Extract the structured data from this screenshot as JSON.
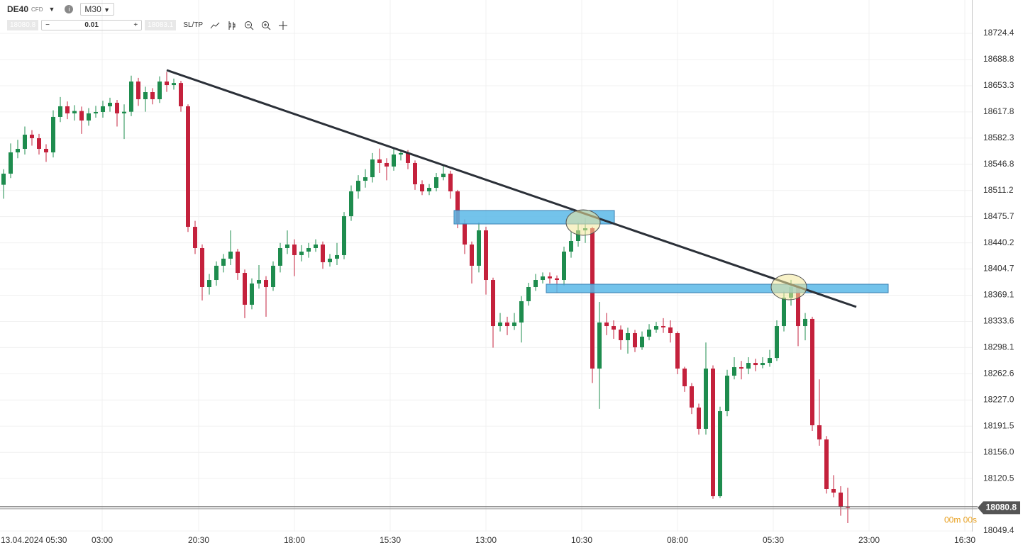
{
  "toolbar": {
    "symbol": "DE40",
    "kind": "CFD",
    "timeframe": "M30",
    "sell": "18080.8",
    "volume": "0.01",
    "buy": "18083.1",
    "sltp": "SL/TP"
  },
  "chart_data": {
    "type": "candlestick",
    "ylim": [
      18048.5,
      18769.6
    ],
    "xlim": [
      -0.5,
      136.5
    ],
    "yticks": [
      18724.4,
      18688.8,
      18653.3,
      18617.8,
      18582.3,
      18546.8,
      18511.2,
      18475.7,
      18440.2,
      18404.7,
      18369.1,
      18333.6,
      18298.1,
      18262.6,
      {
        "value": 18227,
        "label": "18227.0"
      },
      18191.5,
      {
        "value": 18156,
        "label": "18156.0"
      },
      18120.5,
      18049.4
    ],
    "xticks": [
      {
        "value": -0.5,
        "label": "13.04.2024 05:30"
      },
      {
        "value": 13.9,
        "label": "03:00"
      },
      {
        "value": 27.5,
        "label": "20:30"
      },
      {
        "value": 41,
        "label": "18:00"
      },
      {
        "value": 54.5,
        "label": "15:30"
      },
      {
        "value": 68,
        "label": "13:00"
      },
      {
        "value": 81.5,
        "label": "10:30"
      },
      {
        "value": 95,
        "label": "08:00"
      },
      {
        "value": 108.5,
        "label": "05:30"
      },
      {
        "value": 122,
        "label": "23:00"
      },
      {
        "value": 135.5,
        "label": "16:30"
      }
    ],
    "grid": true,
    "up_color": "#1e8c4e",
    "down_color": "#c4213c",
    "last_price": 18080.8,
    "countdown": "00m 00s",
    "candles": [
      [
        18519.0,
        18540.0,
        18500.0,
        18534.0
      ],
      [
        18534.0,
        18575.0,
        18528.0,
        18562.9
      ],
      [
        18562.9,
        18580.0,
        18555.0,
        18567.7
      ],
      [
        18567.7,
        18598.0,
        18560.0,
        18586.9
      ],
      [
        18586.9,
        18593.0,
        18572.0,
        18582.1
      ],
      [
        18582.1,
        18588.0,
        18560.0,
        18567.7
      ],
      [
        18567.7,
        18574.0,
        18550.0,
        18562.9
      ],
      [
        18562.9,
        18620.0,
        18556.0,
        18611.0
      ],
      [
        18611.0,
        18638.0,
        18604.0,
        18625.4
      ],
      [
        18625.4,
        18632.0,
        18608.0,
        18615.8
      ],
      [
        18615.8,
        18627.0,
        18606.0,
        18619.0
      ],
      [
        18619.0,
        18625.0,
        18588.0,
        18606.1
      ],
      [
        18606.1,
        18623.0,
        18599.0,
        18615.8
      ],
      [
        18615.8,
        18626.0,
        18610.0,
        18617.7
      ],
      [
        18617.7,
        18633.0,
        18610.0,
        18625.4
      ],
      [
        18625.4,
        18637.0,
        18618.0,
        18630.2
      ],
      [
        18630.2,
        18634.0,
        18598.0,
        18615.8
      ],
      [
        18615.8,
        18628.0,
        18581.0,
        18618.0
      ],
      [
        18618.0,
        18667.0,
        18612.0,
        18659.0
      ],
      [
        18659.0,
        18664.0,
        18626.0,
        18635.0
      ],
      [
        18635.0,
        18652.0,
        18618.0,
        18644.6
      ],
      [
        18644.6,
        18650.0,
        18628.0,
        18635.0
      ],
      [
        18635.0,
        18666.0,
        18630.0,
        18659.0
      ],
      [
        18659.0,
        18672.0,
        18645.0,
        18654.2
      ],
      [
        18654.2,
        18663.0,
        18648.0,
        18657.0
      ],
      [
        18657.0,
        18660.0,
        18618.0,
        18625.4
      ],
      [
        18625.4,
        18628.0,
        18455.0,
        18461.9
      ],
      [
        18461.9,
        18470.0,
        18425.0,
        18433.1
      ],
      [
        18433.1,
        18438.0,
        18362.0,
        18380.2
      ],
      [
        18380.2,
        18398.0,
        18370.0,
        18389.8
      ],
      [
        18389.8,
        18415.0,
        18382.0,
        18409.1
      ],
      [
        18409.1,
        18425.0,
        18400.0,
        18418.7
      ],
      [
        18418.7,
        18457.0,
        18410.0,
        18428.3
      ],
      [
        18428.3,
        18432.0,
        18390.0,
        18399.4
      ],
      [
        18399.4,
        18404.0,
        18338.0,
        18356.2
      ],
      [
        18356.2,
        18392.0,
        18350.0,
        18385.0
      ],
      [
        18385.0,
        18410.0,
        18378.0,
        18389.8
      ],
      [
        18389.8,
        18395.0,
        18340.0,
        18380.2
      ],
      [
        18380.2,
        18415.0,
        18375.0,
        18409.1
      ],
      [
        18409.1,
        18440.0,
        18400.0,
        18433.1
      ],
      [
        18433.1,
        18457.0,
        18425.0,
        18437.9
      ],
      [
        18437.9,
        18445.0,
        18395.0,
        18423.5
      ],
      [
        18423.5,
        18437.0,
        18415.0,
        18428.3
      ],
      [
        18428.3,
        18440.0,
        18420.0,
        18433.1
      ],
      [
        18433.1,
        18445.0,
        18428.0,
        18437.9
      ],
      [
        18437.9,
        18442.0,
        18405.0,
        18413.9
      ],
      [
        18413.9,
        18425.0,
        18408.0,
        18418.7
      ],
      [
        18418.7,
        18440.0,
        18410.0,
        18423.5
      ],
      [
        18423.5,
        18482.0,
        18418.0,
        18476.3
      ],
      [
        18476.3,
        18518.0,
        18470.0,
        18510.0
      ],
      [
        18510.0,
        18532.0,
        18500.0,
        18524.4
      ],
      [
        18524.4,
        18540.0,
        18515.0,
        18529.2
      ],
      [
        18529.2,
        18562.0,
        18522.0,
        18553.3
      ],
      [
        18553.3,
        18568.0,
        18535.0,
        18548.5
      ],
      [
        18548.5,
        18555.0,
        18525.0,
        18543.7
      ],
      [
        18543.7,
        18568.0,
        18538.0,
        18560.0
      ],
      [
        18560.0,
        18567.0,
        18552.0,
        18562.0
      ],
      [
        18562.0,
        18566.0,
        18540.0,
        18548.5
      ],
      [
        18548.5,
        18552.0,
        18512.0,
        18519.6
      ],
      [
        18519.6,
        18525.0,
        18505.0,
        18510.0
      ],
      [
        18510.0,
        18520.0,
        18505.0,
        18514.8
      ],
      [
        18514.8,
        18535.0,
        18510.0,
        18529.2
      ],
      [
        18529.2,
        18545.0,
        18525.0,
        18534.0
      ],
      [
        18534.0,
        18538.0,
        18500.0,
        18510.0
      ],
      [
        18510.0,
        18512.0,
        18460.0,
        18466.7
      ],
      [
        18466.7,
        18472.0,
        18425.0,
        18437.9
      ],
      [
        18437.9,
        18442.0,
        18385.0,
        18409.1
      ],
      [
        18409.1,
        18468.0,
        18400.0,
        18457.1
      ],
      [
        18457.1,
        18462.0,
        18370.0,
        18389.8
      ],
      [
        18389.8,
        18393.0,
        18298.0,
        18327.3
      ],
      [
        18327.3,
        18345.0,
        18320.0,
        18332.1
      ],
      [
        18332.1,
        18340.0,
        18315.0,
        18327.3
      ],
      [
        18327.3,
        18345.0,
        18322.0,
        18332.1
      ],
      [
        18332.1,
        18368.0,
        18305.0,
        18361.0
      ],
      [
        18361.0,
        18386.0,
        18355.0,
        18380.2
      ],
      [
        18380.2,
        18398.0,
        18375.0,
        18389.8
      ],
      [
        18389.8,
        18400.0,
        18385.0,
        18394.6
      ],
      [
        18394.6,
        18400.0,
        18385.0,
        18392.0
      ],
      [
        18392.0,
        18396.0,
        18372.0,
        18389.8
      ],
      [
        18389.8,
        18435.0,
        18382.0,
        18428.3
      ],
      [
        18428.3,
        18455.0,
        18420.0,
        18442.7
      ],
      [
        18442.7,
        18468.0,
        18435.0,
        18457.1
      ],
      [
        18457.1,
        18474.0,
        18440.0,
        18460.0
      ],
      [
        18460.0,
        18462.0,
        18250.0,
        18269.6
      ],
      [
        18269.6,
        18360.0,
        18215.0,
        18332.1
      ],
      [
        18332.1,
        18345.0,
        18315.0,
        18327.3
      ],
      [
        18327.3,
        18335.0,
        18310.0,
        18322.5
      ],
      [
        18322.5,
        18328.0,
        18295.0,
        18308.1
      ],
      [
        18308.1,
        18325.0,
        18290.0,
        18317.7
      ],
      [
        18317.7,
        18322.0,
        18292.0,
        18298.5
      ],
      [
        18298.5,
        18320.0,
        18295.0,
        18312.9
      ],
      [
        18312.9,
        18330.0,
        18308.0,
        18322.5
      ],
      [
        18322.5,
        18333.0,
        18318.0,
        18327.3
      ],
      [
        18327.3,
        18338.0,
        18318.0,
        18325.4
      ],
      [
        18325.4,
        18335.0,
        18305.0,
        18317.7
      ],
      [
        18317.7,
        18320.0,
        18262.0,
        18269.6
      ],
      [
        18269.6,
        18272.0,
        18238.0,
        18245.6
      ],
      [
        18245.6,
        18250.0,
        18208.0,
        18216.7
      ],
      [
        18216.7,
        18222.0,
        18180.0,
        18187.9
      ],
      [
        18187.9,
        18305.0,
        18180.0,
        18269.6
      ],
      [
        18269.6,
        18274.0,
        18093.0,
        18096.5
      ],
      [
        18096.5,
        18218.0,
        18094.0,
        18211.9
      ],
      [
        18211.9,
        18268.0,
        18205.0,
        18260.0
      ],
      [
        18260.0,
        18285.0,
        18255.0,
        18271.5
      ],
      [
        18271.5,
        18280.0,
        18255.0,
        18269.6
      ],
      [
        18269.6,
        18285.0,
        18262.0,
        18277.3
      ],
      [
        18277.3,
        18283.0,
        18266.0,
        18274.4
      ],
      [
        18274.4,
        18285.0,
        18270.0,
        18277.3
      ],
      [
        18277.3,
        18295.0,
        18272.0,
        18284.0
      ],
      [
        18284.0,
        18335.0,
        18280.0,
        18327.3
      ],
      [
        18327.3,
        18375.0,
        18320.0,
        18365.8
      ],
      [
        18365.8,
        18390.0,
        18355.0,
        18380.2
      ],
      [
        18380.2,
        18384.0,
        18300.0,
        18327.3
      ],
      [
        18327.3,
        18345.0,
        18308.0,
        18337.0
      ],
      [
        18337.0,
        18340.0,
        18185.0,
        18192.7
      ],
      [
        18192.7,
        18255.0,
        18165.0,
        18173.5
      ],
      [
        18173.5,
        18178.0,
        18100.0,
        18106.2
      ],
      [
        18106.2,
        18125.0,
        18095.0,
        18101.4
      ],
      [
        18101.4,
        18110.0,
        18070.0,
        18082.1
      ],
      [
        18082.1,
        18108.0,
        18060.0,
        18080.8
      ]
    ]
  }
}
